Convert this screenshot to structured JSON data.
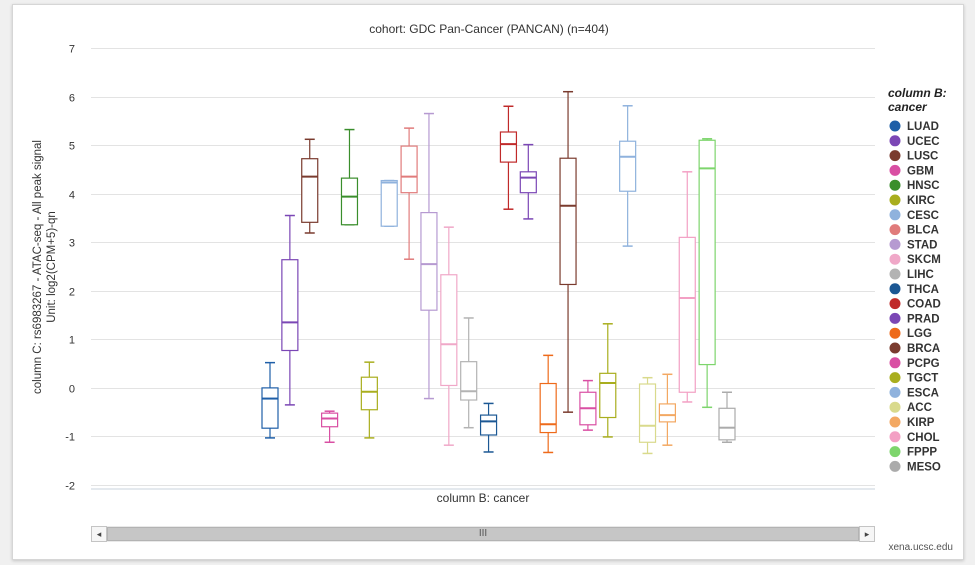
{
  "chart_data": {
    "type": "box",
    "title": "cohort: GDC Pan-Cancer (PANCAN) (n=404)",
    "xlabel": "column B: cancer",
    "ylabel": "column C: rs6983267 - ATAC-seq - All peak signal",
    "ylabel_unit": "Unit: log2(CPM+5)-qn",
    "ylim": [
      -2,
      7
    ],
    "yticks": [
      -2,
      -1,
      0,
      1,
      2,
      3,
      4,
      5,
      6,
      7
    ],
    "grid": true,
    "legend_title": "column B: cancer",
    "legend_position": "right",
    "series": [
      {
        "name": "LUAD",
        "color": "#1f5fa8",
        "min": -1.03,
        "q1": -0.83,
        "median": -0.22,
        "q3": 0.0,
        "max": 0.52
      },
      {
        "name": "UCEC",
        "color": "#7b47b5",
        "min": -0.35,
        "q1": 0.77,
        "median": 1.35,
        "q3": 2.64,
        "max": 3.55
      },
      {
        "name": "LUSC",
        "color": "#7a3b2e",
        "min": 3.19,
        "q1": 3.41,
        "median": 4.35,
        "q3": 4.72,
        "max": 5.12
      },
      {
        "name": "GBM",
        "color": "#d94fa3",
        "min": -1.12,
        "q1": -0.8,
        "median": -0.63,
        "q3": -0.52,
        "max": -0.48
      },
      {
        "name": "HNSC",
        "color": "#3a8e2c",
        "min": 3.36,
        "q1": 3.36,
        "median": 3.94,
        "q3": 4.32,
        "max": 5.32
      },
      {
        "name": "KIRC",
        "color": "#a9ae1e",
        "min": -1.03,
        "q1": -0.45,
        "median": -0.08,
        "q3": 0.22,
        "max": 0.53
      },
      {
        "name": "CESC",
        "color": "#8fb2dd",
        "min": 3.33,
        "q1": 3.33,
        "median": 4.23,
        "q3": 4.27,
        "max": 4.27
      },
      {
        "name": "BLCA",
        "color": "#e07b7b",
        "min": 2.65,
        "q1": 4.02,
        "median": 4.35,
        "q3": 4.98,
        "max": 5.35
      },
      {
        "name": "STAD",
        "color": "#b69ad1",
        "min": -0.22,
        "q1": 1.6,
        "median": 2.55,
        "q3": 3.61,
        "max": 5.65
      },
      {
        "name": "SKCM",
        "color": "#f0a8c8",
        "min": -1.18,
        "q1": 0.05,
        "median": 0.9,
        "q3": 2.33,
        "max": 3.31
      },
      {
        "name": "LIHC",
        "color": "#b3b3b3",
        "min": -0.82,
        "q1": -0.25,
        "median": -0.07,
        "q3": 0.54,
        "max": 1.44
      },
      {
        "name": "THCA",
        "color": "#1c5894",
        "min": -1.32,
        "q1": -0.97,
        "median": -0.69,
        "q3": -0.56,
        "max": -0.32
      },
      {
        "name": "COAD",
        "color": "#c02a2a",
        "min": 3.68,
        "q1": 4.65,
        "median": 5.02,
        "q3": 5.27,
        "max": 5.8
      },
      {
        "name": "PRAD",
        "color": "#7b47b5",
        "min": 3.48,
        "q1": 4.02,
        "median": 4.33,
        "q3": 4.45,
        "max": 5.01
      },
      {
        "name": "LGG",
        "color": "#ee6a1a",
        "min": -1.33,
        "q1": -0.92,
        "median": -0.75,
        "q3": 0.09,
        "max": 0.67
      },
      {
        "name": "BRCA",
        "color": "#7a3b2e",
        "min": -0.5,
        "q1": 2.13,
        "median": 3.75,
        "q3": 4.73,
        "max": 6.1
      },
      {
        "name": "PCPG",
        "color": "#d94fa3",
        "min": -0.87,
        "q1": -0.76,
        "median": -0.42,
        "q3": -0.09,
        "max": 0.15
      },
      {
        "name": "TGCT",
        "color": "#a9ae1e",
        "min": -1.01,
        "q1": -0.61,
        "median": 0.1,
        "q3": 0.3,
        "max": 1.32
      },
      {
        "name": "ESCA",
        "color": "#8fb2dd",
        "min": 2.92,
        "q1": 4.05,
        "median": 4.76,
        "q3": 5.08,
        "max": 5.81
      },
      {
        "name": "ACC",
        "color": "#d9da8c",
        "min": -1.35,
        "q1": -1.12,
        "median": -0.78,
        "q3": 0.08,
        "max": 0.21
      },
      {
        "name": "KIRP",
        "color": "#f3a862",
        "min": -1.18,
        "q1": -0.7,
        "median": -0.56,
        "q3": -0.33,
        "max": 0.28
      },
      {
        "name": "CHOL",
        "color": "#f3a0c4",
        "min": -0.29,
        "q1": -0.09,
        "median": 1.85,
        "q3": 3.1,
        "max": 4.45
      },
      {
        "name": "FPPP",
        "color": "#7dd56c",
        "min": -0.4,
        "q1": 0.48,
        "median": 4.52,
        "q3": 5.1,
        "max": 5.13
      },
      {
        "name": "MESO",
        "color": "#ababab",
        "min": -1.12,
        "q1": -1.07,
        "median": -0.82,
        "q3": -0.42,
        "max": -0.09
      }
    ]
  },
  "scrollbar": {
    "left_arrow": "◂",
    "thumb_grip": "III",
    "right_arrow": "▸"
  },
  "credit": "xena.ucsc.edu"
}
